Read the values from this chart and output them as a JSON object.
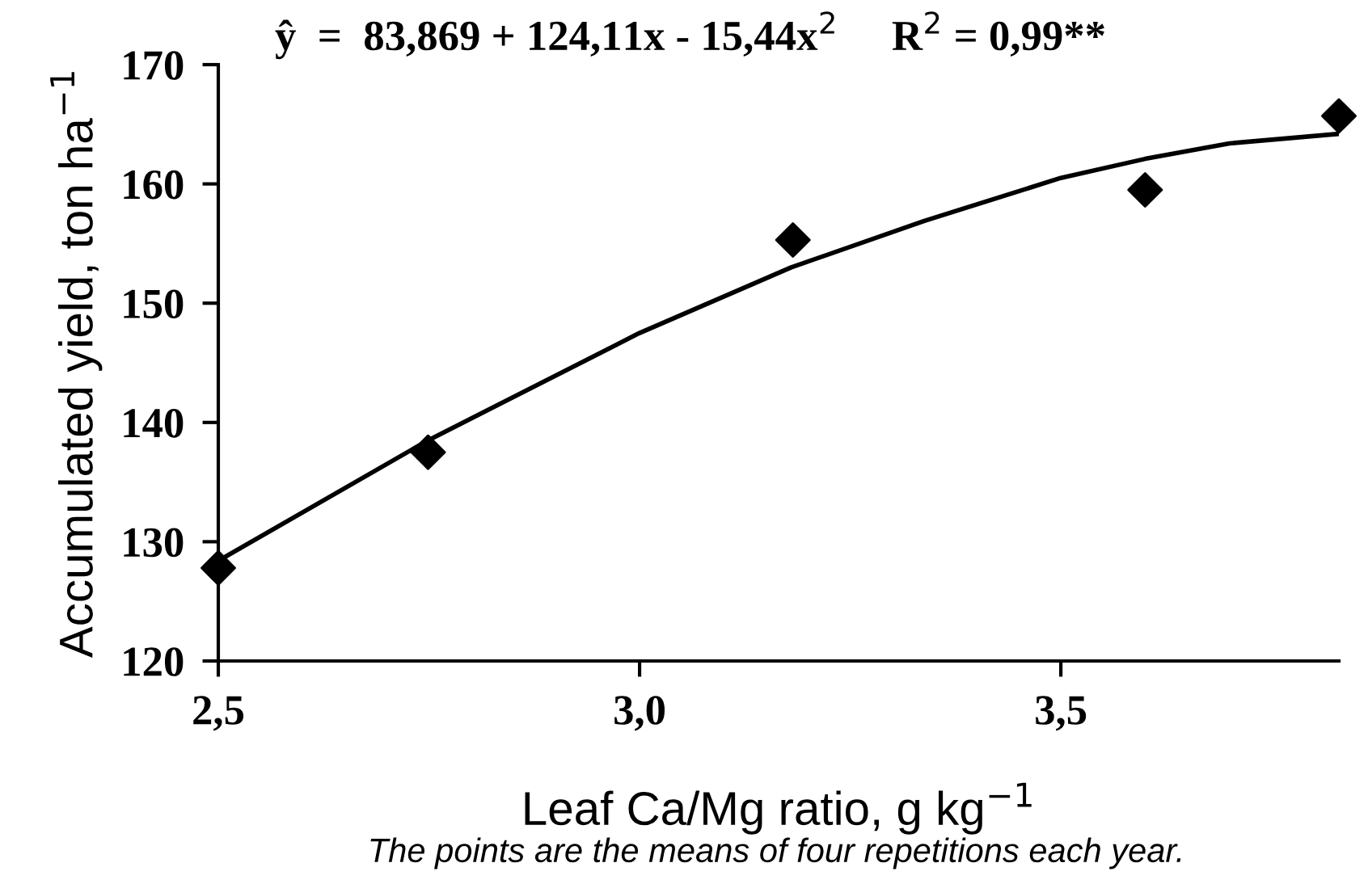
{
  "chart_data": {
    "type": "scatter",
    "xlabel": "Leaf Ca/Mg ratio, g kg$^{−1}$",
    "ylabel": "Accumulated yield, ton ha$^{−1}$",
    "annotations": [
      "ŷ  =  83,869 + 124,11x - 15,44x$^{2}$     R$^{2}$ = 0,99**",
      "The points are the means of four repetitions each year."
    ],
    "series": [
      {
        "color": "#000000",
        "marker": "diamond",
        "x": [
          2.5,
          2.749,
          3.182,
          3.6,
          3.83
        ],
        "values": [
          127.8,
          137.5,
          155.3,
          159.5,
          165.7
        ]
      },
      {
        "type": "line",
        "color": "#000000",
        "marker": "none",
        "line_style": "solid",
        "x": [
          2.5,
          2.749,
          3.0,
          3.18,
          3.338,
          3.5,
          3.6,
          3.7,
          3.83
        ],
        "values": [
          128.4,
          138.5,
          147.5,
          153.0,
          156.9,
          160.5,
          162.1,
          163.4,
          164.2
        ]
      }
    ],
    "xlim": [
      2.5,
      3.83
    ],
    "ylim": [
      120,
      170
    ],
    "xticks": [
      {
        "value": 2.5,
        "label": "2,5"
      },
      {
        "value": 3.0,
        "label": "3,0"
      },
      {
        "value": 3.5,
        "label": "3,5"
      }
    ],
    "yticks": [
      120,
      130,
      140,
      150,
      160,
      170
    ],
    "grid": false,
    "legend": false
  }
}
